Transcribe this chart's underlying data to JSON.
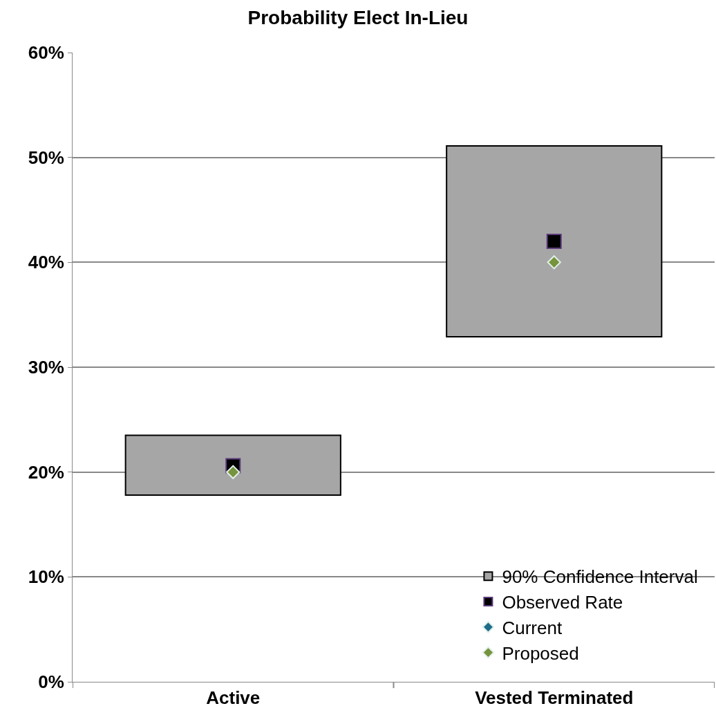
{
  "chart_data": {
    "type": "bar",
    "title": "Probability Elect In-Lieu",
    "categories": [
      "Active",
      "Vested Terminated"
    ],
    "series": [
      {
        "name": "90% Confidence Interval",
        "color": "#a6a6a6",
        "base": [
          17.8,
          32.9
        ],
        "values": [
          5.7,
          18.2
        ]
      },
      {
        "name": "Observed Rate",
        "type": "scatter",
        "marker": "square",
        "color": "#000000",
        "values": [
          20.6,
          42.0
        ]
      },
      {
        "name": "Current",
        "type": "scatter",
        "marker": "diamond",
        "color": "#1f6b8a",
        "values": [
          null,
          null
        ]
      },
      {
        "name": "Proposed",
        "type": "scatter",
        "marker": "diamond",
        "color": "#77933c",
        "values": [
          20,
          40
        ]
      }
    ],
    "ylim": [
      0,
      60
    ],
    "yticks": [
      {
        "value": 0,
        "label": "0%"
      },
      {
        "value": 10,
        "label": "10%"
      },
      {
        "value": 20,
        "label": "20%"
      },
      {
        "value": 30,
        "label": "30%"
      },
      {
        "value": 40,
        "label": "40%"
      },
      {
        "value": 50,
        "label": "50%"
      },
      {
        "value": 60,
        "label": "60%"
      }
    ],
    "grid": "y",
    "legend": "bottom right"
  }
}
